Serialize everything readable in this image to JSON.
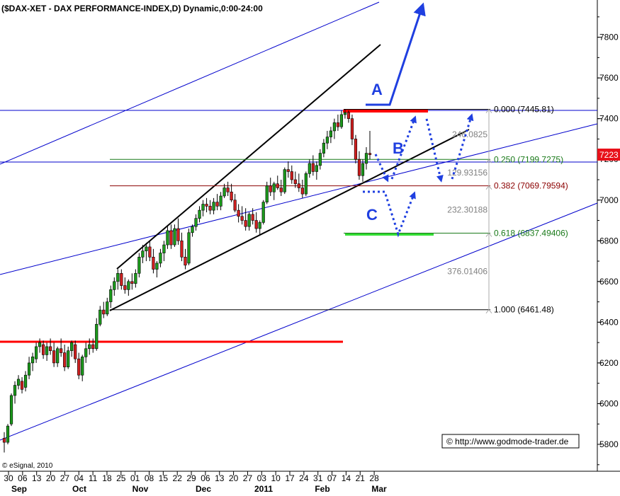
{
  "chart_data": {
    "type": "candlestick",
    "title": "($DAX-XET - DAX PERFORMANCE-INDEX,D) Dynamic,0:00-24:00",
    "ylim": [
      5650,
      7950
    ],
    "y_ticks": [
      5800,
      6000,
      6200,
      6400,
      6600,
      6800,
      7000,
      7200,
      7400,
      7600,
      7800
    ],
    "last_price": "7223",
    "x_day_labels": [
      "30",
      "06",
      "13",
      "20",
      "27",
      "04",
      "11",
      "18",
      "25",
      "01",
      "08",
      "15",
      "22",
      "29",
      "06",
      "13",
      "20",
      "27",
      "03",
      "10",
      "17",
      "24",
      "31",
      "07",
      "14",
      "21",
      "28"
    ],
    "x_month_labels": [
      "Sep",
      "Oct",
      "Nov",
      "Dec",
      "2011",
      "Feb",
      "Mar"
    ],
    "candles": [
      {
        "o": 5830,
        "h": 5860,
        "l": 5760,
        "c": 5810
      },
      {
        "o": 5810,
        "h": 5900,
        "l": 5800,
        "c": 5890
      },
      {
        "o": 5900,
        "h": 6050,
        "l": 5890,
        "c": 6040
      },
      {
        "o": 6040,
        "h": 6110,
        "l": 6000,
        "c": 6090
      },
      {
        "o": 6090,
        "h": 6140,
        "l": 6070,
        "c": 6120
      },
      {
        "o": 6110,
        "h": 6130,
        "l": 6050,
        "c": 6070
      },
      {
        "o": 6080,
        "h": 6160,
        "l": 6060,
        "c": 6140
      },
      {
        "o": 6140,
        "h": 6230,
        "l": 6120,
        "c": 6200
      },
      {
        "o": 6200,
        "h": 6250,
        "l": 6160,
        "c": 6230
      },
      {
        "o": 6220,
        "h": 6300,
        "l": 6200,
        "c": 6280
      },
      {
        "o": 6280,
        "h": 6320,
        "l": 6250,
        "c": 6300
      },
      {
        "o": 6290,
        "h": 6310,
        "l": 6220,
        "c": 6240
      },
      {
        "o": 6240,
        "h": 6300,
        "l": 6210,
        "c": 6280
      },
      {
        "o": 6280,
        "h": 6320,
        "l": 6240,
        "c": 6260
      },
      {
        "o": 6260,
        "h": 6300,
        "l": 6180,
        "c": 6200
      },
      {
        "o": 6200,
        "h": 6280,
        "l": 6180,
        "c": 6270
      },
      {
        "o": 6270,
        "h": 6320,
        "l": 6230,
        "c": 6250
      },
      {
        "o": 6250,
        "h": 6290,
        "l": 6160,
        "c": 6180
      },
      {
        "o": 6180,
        "h": 6280,
        "l": 6170,
        "c": 6260
      },
      {
        "o": 6260,
        "h": 6310,
        "l": 6230,
        "c": 6300
      },
      {
        "o": 6290,
        "h": 6310,
        "l": 6200,
        "c": 6220
      },
      {
        "o": 6220,
        "h": 6250,
        "l": 6120,
        "c": 6140
      },
      {
        "o": 6140,
        "h": 6240,
        "l": 6110,
        "c": 6230
      },
      {
        "o": 6230,
        "h": 6300,
        "l": 6200,
        "c": 6270
      },
      {
        "o": 6270,
        "h": 6320,
        "l": 6240,
        "c": 6290
      },
      {
        "o": 6290,
        "h": 6320,
        "l": 6250,
        "c": 6270
      },
      {
        "o": 6270,
        "h": 6420,
        "l": 6260,
        "c": 6390
      },
      {
        "o": 6390,
        "h": 6480,
        "l": 6380,
        "c": 6460
      },
      {
        "o": 6460,
        "h": 6500,
        "l": 6420,
        "c": 6440
      },
      {
        "o": 6440,
        "h": 6520,
        "l": 6430,
        "c": 6500
      },
      {
        "o": 6500,
        "h": 6580,
        "l": 6470,
        "c": 6560
      },
      {
        "o": 6560,
        "h": 6620,
        "l": 6530,
        "c": 6600
      },
      {
        "o": 6600,
        "h": 6660,
        "l": 6560,
        "c": 6640
      },
      {
        "o": 6640,
        "h": 6660,
        "l": 6560,
        "c": 6580
      },
      {
        "o": 6580,
        "h": 6620,
        "l": 6540,
        "c": 6560
      },
      {
        "o": 6560,
        "h": 6610,
        "l": 6530,
        "c": 6600
      },
      {
        "o": 6600,
        "h": 6640,
        "l": 6560,
        "c": 6590
      },
      {
        "o": 6590,
        "h": 6660,
        "l": 6570,
        "c": 6640
      },
      {
        "o": 6640,
        "h": 6740,
        "l": 6620,
        "c": 6720
      },
      {
        "o": 6720,
        "h": 6780,
        "l": 6690,
        "c": 6750
      },
      {
        "o": 6750,
        "h": 6790,
        "l": 6700,
        "c": 6770
      },
      {
        "o": 6770,
        "h": 6800,
        "l": 6700,
        "c": 6720
      },
      {
        "o": 6720,
        "h": 6760,
        "l": 6640,
        "c": 6660
      },
      {
        "o": 6660,
        "h": 6700,
        "l": 6620,
        "c": 6690
      },
      {
        "o": 6690,
        "h": 6760,
        "l": 6670,
        "c": 6740
      },
      {
        "o": 6740,
        "h": 6800,
        "l": 6700,
        "c": 6780
      },
      {
        "o": 6780,
        "h": 6870,
        "l": 6760,
        "c": 6850
      },
      {
        "o": 6850,
        "h": 6880,
        "l": 6760,
        "c": 6780
      },
      {
        "o": 6780,
        "h": 6880,
        "l": 6770,
        "c": 6860
      },
      {
        "o": 6860,
        "h": 6910,
        "l": 6780,
        "c": 6800
      },
      {
        "o": 6800,
        "h": 6840,
        "l": 6700,
        "c": 6720
      },
      {
        "o": 6720,
        "h": 6760,
        "l": 6660,
        "c": 6680
      },
      {
        "o": 6690,
        "h": 6860,
        "l": 6680,
        "c": 6840
      },
      {
        "o": 6840,
        "h": 6880,
        "l": 6820,
        "c": 6870
      },
      {
        "o": 6870,
        "h": 6930,
        "l": 6850,
        "c": 6910
      },
      {
        "o": 6910,
        "h": 6970,
        "l": 6890,
        "c": 6950
      },
      {
        "o": 6950,
        "h": 7000,
        "l": 6920,
        "c": 6980
      },
      {
        "o": 6980,
        "h": 7010,
        "l": 6940,
        "c": 6970
      },
      {
        "o": 6970,
        "h": 7000,
        "l": 6930,
        "c": 6950
      },
      {
        "o": 6950,
        "h": 7010,
        "l": 6930,
        "c": 6990
      },
      {
        "o": 6990,
        "h": 7030,
        "l": 6950,
        "c": 6970
      },
      {
        "o": 6970,
        "h": 7040,
        "l": 6950,
        "c": 7020
      },
      {
        "o": 7020,
        "h": 7080,
        "l": 7010,
        "c": 7060
      },
      {
        "o": 7060,
        "h": 7090,
        "l": 7020,
        "c": 7040
      },
      {
        "o": 7040,
        "h": 7080,
        "l": 6990,
        "c": 7000
      },
      {
        "o": 7000,
        "h": 7030,
        "l": 6940,
        "c": 6950
      },
      {
        "o": 6950,
        "h": 6980,
        "l": 6890,
        "c": 6920
      },
      {
        "o": 6920,
        "h": 6970,
        "l": 6880,
        "c": 6900
      },
      {
        "o": 6900,
        "h": 6960,
        "l": 6850,
        "c": 6870
      },
      {
        "o": 6870,
        "h": 6940,
        "l": 6850,
        "c": 6930
      },
      {
        "o": 6930,
        "h": 6960,
        "l": 6880,
        "c": 6900
      },
      {
        "o": 6900,
        "h": 6940,
        "l": 6840,
        "c": 6860
      },
      {
        "o": 6860,
        "h": 6900,
        "l": 6830,
        "c": 6890
      },
      {
        "o": 6890,
        "h": 7000,
        "l": 6880,
        "c": 6990
      },
      {
        "o": 6990,
        "h": 7090,
        "l": 6980,
        "c": 7070
      },
      {
        "o": 7070,
        "h": 7110,
        "l": 7020,
        "c": 7040
      },
      {
        "o": 7040,
        "h": 7090,
        "l": 7000,
        "c": 7080
      },
      {
        "o": 7080,
        "h": 7120,
        "l": 7050,
        "c": 7060
      },
      {
        "o": 7060,
        "h": 7100,
        "l": 7020,
        "c": 7040
      },
      {
        "o": 7040,
        "h": 7160,
        "l": 7030,
        "c": 7150
      },
      {
        "o": 7150,
        "h": 7190,
        "l": 7110,
        "c": 7140
      },
      {
        "o": 7140,
        "h": 7170,
        "l": 7080,
        "c": 7100
      },
      {
        "o": 7100,
        "h": 7140,
        "l": 7060,
        "c": 7080
      },
      {
        "o": 7080,
        "h": 7130,
        "l": 7040,
        "c": 7060
      },
      {
        "o": 7060,
        "h": 7100,
        "l": 7010,
        "c": 7030
      },
      {
        "o": 7030,
        "h": 7140,
        "l": 7020,
        "c": 7130
      },
      {
        "o": 7130,
        "h": 7200,
        "l": 7110,
        "c": 7180
      },
      {
        "o": 7180,
        "h": 7220,
        "l": 7120,
        "c": 7140
      },
      {
        "o": 7140,
        "h": 7190,
        "l": 7100,
        "c": 7170
      },
      {
        "o": 7170,
        "h": 7250,
        "l": 7150,
        "c": 7230
      },
      {
        "o": 7230,
        "h": 7300,
        "l": 7210,
        "c": 7280
      },
      {
        "o": 7280,
        "h": 7340,
        "l": 7250,
        "c": 7310
      },
      {
        "o": 7310,
        "h": 7360,
        "l": 7280,
        "c": 7340
      },
      {
        "o": 7340,
        "h": 7400,
        "l": 7300,
        "c": 7380
      },
      {
        "o": 7380,
        "h": 7420,
        "l": 7340,
        "c": 7360
      },
      {
        "o": 7360,
        "h": 7440,
        "l": 7350,
        "c": 7420
      },
      {
        "o": 7420,
        "h": 7446,
        "l": 7400,
        "c": 7430
      },
      {
        "o": 7430,
        "h": 7440,
        "l": 7380,
        "c": 7400
      },
      {
        "o": 7400,
        "h": 7420,
        "l": 7270,
        "c": 7300
      },
      {
        "o": 7300,
        "h": 7320,
        "l": 7180,
        "c": 7200
      },
      {
        "o": 7200,
        "h": 7240,
        "l": 7100,
        "c": 7120
      },
      {
        "o": 7120,
        "h": 7200,
        "l": 7090,
        "c": 7180
      },
      {
        "o": 7180,
        "h": 7260,
        "l": 7150,
        "c": 7230
      },
      {
        "o": 7230,
        "h": 7340,
        "l": 7200,
        "c": 7223
      }
    ],
    "fib_levels": [
      {
        "label": "0.000 (7445.81)",
        "value": 7445.81,
        "color": "#000000"
      },
      {
        "label": "0.250 (7199.7275)",
        "value": 7199.7275,
        "color": "#1a7a1a"
      },
      {
        "label": "0.382 (7069.79594)",
        "value": 7069.79594,
        "color": "#8b0000"
      },
      {
        "label": "0.618 (6837.49406)",
        "value": 6837.49406,
        "color": "#1a7a1a"
      },
      {
        "label": "1.000 (6461.48)",
        "value": 6461.48,
        "color": "#000000"
      }
    ],
    "fib_distances": [
      {
        "label": "246.0825",
        "value": 7323
      },
      {
        "label": "129.93156",
        "value": 7135
      },
      {
        "label": "232.30188",
        "value": 6953
      },
      {
        "label": "376.01406",
        "value": 6650
      }
    ],
    "annotations": {
      "wave_a": "A",
      "wave_b": "B",
      "wave_c": "C"
    },
    "copyright": "© http://www.godmode-trader.de",
    "source": "© eSignal, 2010",
    "colors": {
      "up_candle": "#1b9b1b",
      "down_candle": "#d21f1f",
      "resistance": "#ff0000",
      "support": "#33dd33",
      "channel": "#0000cc",
      "arrows": "#1f3fe0",
      "price_tag": "#e8101a"
    }
  }
}
